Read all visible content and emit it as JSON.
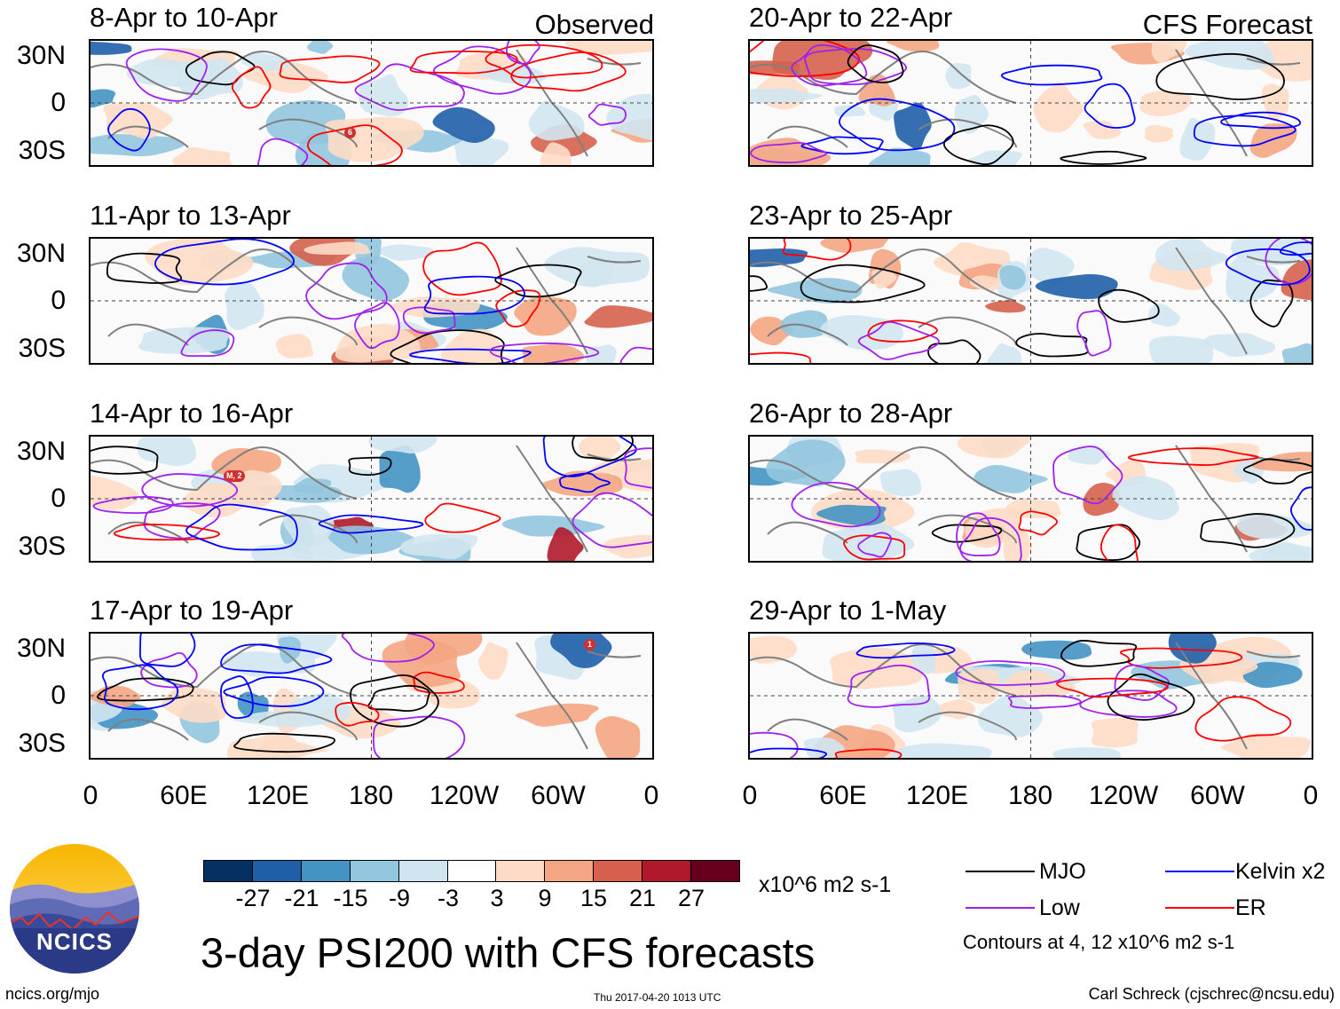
{
  "header": {
    "observed_label": "Observed",
    "forecast_label": "CFS Forecast"
  },
  "panels": [
    {
      "title": "8-Apr to 10-Apr",
      "group": "observed",
      "storm_marker": "6"
    },
    {
      "title": "11-Apr to 13-Apr",
      "group": "observed",
      "storm_marker": ""
    },
    {
      "title": "14-Apr to 16-Apr",
      "group": "observed",
      "storm_marker": "M, 2"
    },
    {
      "title": "17-Apr to 19-Apr",
      "group": "observed",
      "storm_marker": "1"
    },
    {
      "title": "20-Apr to 22-Apr",
      "group": "forecast",
      "storm_marker": ""
    },
    {
      "title": "23-Apr to 25-Apr",
      "group": "forecast",
      "storm_marker": ""
    },
    {
      "title": "26-Apr to 28-Apr",
      "group": "forecast",
      "storm_marker": ""
    },
    {
      "title": "29-Apr to 1-May",
      "group": "forecast",
      "storm_marker": ""
    }
  ],
  "axes": {
    "lat_labels": [
      "30N",
      "0",
      "30S"
    ],
    "lon_labels": [
      "0",
      "60E",
      "120E",
      "180",
      "120W",
      "60W",
      "0"
    ]
  },
  "colorbar": {
    "labels": [
      "-27",
      "-21",
      "-15",
      "-9",
      "-3",
      "3",
      "9",
      "15",
      "21",
      "27"
    ],
    "colors": [
      "#053061",
      "#1f5fa8",
      "#4393c3",
      "#92c5de",
      "#d1e5f0",
      "#ffffff",
      "#fddbc7",
      "#f4a582",
      "#d6604d",
      "#b2182b",
      "#67001f"
    ],
    "units": "x10^6 m2 s-1"
  },
  "legend": {
    "items": [
      {
        "label": "MJO",
        "color": "#000000"
      },
      {
        "label": "Kelvin x2",
        "color": "#0000ff"
      },
      {
        "label": "Low",
        "color": "#a020f0"
      },
      {
        "label": "ER",
        "color": "#ff0000"
      }
    ],
    "contour_note": "Contours at 4, 12 x10^6 m2 s-1"
  },
  "footer": {
    "title": "3-day PSI200 with CFS forecasts",
    "url": "ncics.org/mjo",
    "timestamp": "Thu 2017-04-20 1013 UTC",
    "credit": "Carl Schreck (cjschrec@ncsu.edu)",
    "logo_text": "NCICS"
  },
  "chart_data": {
    "type": "heatmap",
    "variable": "3-day PSI200 anomaly",
    "units": "x10^6 m2 s-1",
    "contour_levels": [
      4,
      12
    ],
    "lat_range": [
      "30S",
      "30N"
    ],
    "lon_range": [
      "0",
      "0"
    ],
    "panels": 8
  }
}
